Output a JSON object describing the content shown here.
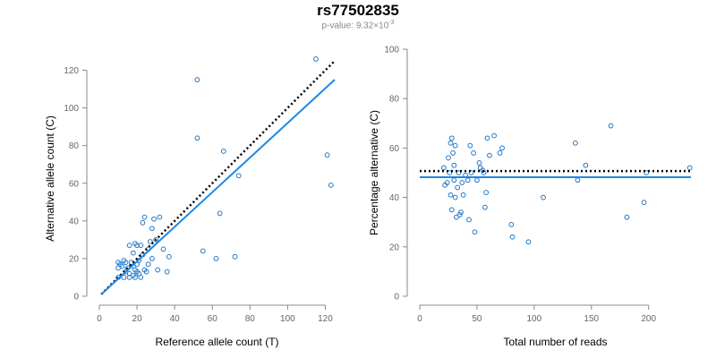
{
  "title": "rs77502835",
  "subtitle": {
    "prefix": "p-value: 9.32×10",
    "exponent": "-3"
  },
  "colors": {
    "points": "#1f78c8",
    "fit_line": "#1e88e5",
    "reference_line": "#000000",
    "axis": "#888888",
    "tick_text": "#666666"
  },
  "chart_data": [
    {
      "type": "scatter",
      "xlabel": "Reference allele count (T)",
      "ylabel": "Alternative allele count (C)",
      "xlim": [
        0,
        125
      ],
      "ylim": [
        0,
        125
      ],
      "xticks": [
        0,
        20,
        40,
        60,
        80,
        100,
        120
      ],
      "yticks": [
        0,
        20,
        40,
        60,
        80,
        100,
        120
      ],
      "grid": false,
      "points": [
        [
          10,
          10
        ],
        [
          10,
          15
        ],
        [
          10,
          18
        ],
        [
          11,
          17
        ],
        [
          12,
          16
        ],
        [
          13,
          19
        ],
        [
          13,
          10
        ],
        [
          14,
          13
        ],
        [
          14,
          18
        ],
        [
          15,
          15
        ],
        [
          16,
          12
        ],
        [
          16,
          10
        ],
        [
          17,
          18
        ],
        [
          18,
          16
        ],
        [
          18,
          11
        ],
        [
          19,
          14
        ],
        [
          19,
          10
        ],
        [
          20,
          13
        ],
        [
          20,
          17
        ],
        [
          21,
          12
        ],
        [
          21,
          19
        ],
        [
          22,
          27
        ],
        [
          22,
          10
        ],
        [
          23,
          39
        ],
        [
          23,
          22
        ],
        [
          24,
          42
        ],
        [
          24,
          14
        ],
        [
          25,
          13
        ],
        [
          26,
          17
        ],
        [
          26,
          25
        ],
        [
          27,
          29
        ],
        [
          28,
          20
        ],
        [
          28,
          36
        ],
        [
          29,
          41
        ],
        [
          30,
          30
        ],
        [
          31,
          14
        ],
        [
          32,
          42
        ],
        [
          34,
          25
        ],
        [
          36,
          13
        ],
        [
          37,
          21
        ],
        [
          19,
          28
        ],
        [
          20,
          27
        ],
        [
          16,
          27
        ],
        [
          18,
          23
        ],
        [
          52,
          115
        ],
        [
          52,
          84
        ],
        [
          55,
          24
        ],
        [
          62,
          20
        ],
        [
          64,
          44
        ],
        [
          66,
          77
        ],
        [
          72,
          21
        ],
        [
          74,
          64
        ],
        [
          115,
          126
        ],
        [
          121,
          75
        ],
        [
          123,
          59
        ]
      ],
      "fit_line": [
        [
          1,
          1
        ],
        [
          125,
          115
        ]
      ],
      "reference_line": [
        [
          1,
          1
        ],
        [
          125,
          125
        ]
      ]
    },
    {
      "type": "scatter",
      "xlabel": "Total number of reads",
      "ylabel": "Percentage alternative (C)",
      "xlim": [
        0,
        237
      ],
      "ylim": [
        0,
        100
      ],
      "xticks": [
        0,
        50,
        100,
        150,
        200
      ],
      "yticks": [
        0,
        20,
        40,
        60,
        80,
        100
      ],
      "grid": false,
      "points": [
        [
          21,
          52
        ],
        [
          22,
          45
        ],
        [
          24,
          46
        ],
        [
          25,
          56
        ],
        [
          26,
          50
        ],
        [
          27,
          41
        ],
        [
          27,
          62
        ],
        [
          28,
          64
        ],
        [
          28,
          35
        ],
        [
          29,
          58
        ],
        [
          30,
          53
        ],
        [
          30,
          47
        ],
        [
          31,
          61
        ],
        [
          31,
          40
        ],
        [
          32,
          32
        ],
        [
          33,
          44
        ],
        [
          34,
          50
        ],
        [
          35,
          33
        ],
        [
          36,
          34
        ],
        [
          37,
          46
        ],
        [
          38,
          41
        ],
        [
          40,
          49
        ],
        [
          42,
          47
        ],
        [
          43,
          31
        ],
        [
          44,
          61
        ],
        [
          45,
          50
        ],
        [
          47,
          58
        ],
        [
          48,
          26
        ],
        [
          50,
          47
        ],
        [
          52,
          54
        ],
        [
          53,
          52
        ],
        [
          55,
          51
        ],
        [
          56,
          50
        ],
        [
          57,
          36
        ],
        [
          58,
          42
        ],
        [
          59,
          64
        ],
        [
          61,
          57
        ],
        [
          65,
          65
        ],
        [
          70,
          58
        ],
        [
          72,
          60
        ],
        [
          80,
          29
        ],
        [
          81,
          24
        ],
        [
          95,
          22
        ],
        [
          108,
          40
        ],
        [
          136,
          62
        ],
        [
          138,
          47
        ],
        [
          145,
          53
        ],
        [
          167,
          69
        ],
        [
          181,
          32
        ],
        [
          196,
          38
        ],
        [
          198,
          50
        ],
        [
          236,
          52
        ]
      ],
      "fit_value": 48.2,
      "reference_value": 50.7
    }
  ]
}
